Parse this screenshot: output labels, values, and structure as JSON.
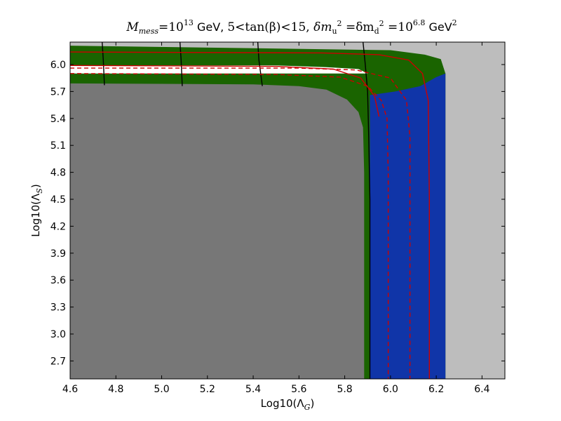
{
  "chart_data": {
    "type": "heatmap",
    "title": "Mmess=10^13 GeV, 5<tan(β)<15, δmu^2=δmd^2=10^6.8 GeV^2",
    "title_parts": {
      "m": "M",
      "m_sub": "mess",
      "eq1": "=10",
      "exp1": "13",
      "gev": " GeV, ",
      "tan": "5<tan(β)<15, ",
      "dmu": "δm",
      "dmu_sub": "u",
      "dmu_sup": "2",
      "eq2": " =δm",
      "dmd_sub": "d",
      "dmd_sup": "2",
      "eq3": " =10",
      "exp2": "6.8",
      "gev2": " GeV",
      "gev2_sup": "2"
    },
    "xlabel": {
      "prefix": "Log10(Λ",
      "sub": "G",
      "suffix": ")"
    },
    "ylabel": {
      "prefix": "Log10(Λ",
      "sub": "S",
      "suffix": ")"
    },
    "xlim": [
      4.6,
      6.5
    ],
    "ylim": [
      2.5,
      6.25
    ],
    "xticks": [
      "4.6",
      "4.8",
      "5.0",
      "5.2",
      "5.4",
      "5.6",
      "5.8",
      "6.0",
      "6.2",
      "6.4"
    ],
    "yticks": [
      "2.7",
      "3.0",
      "3.3",
      "3.6",
      "3.9",
      "4.2",
      "4.5",
      "4.8",
      "5.1",
      "5.4",
      "5.7",
      "6.0"
    ],
    "regions": [
      {
        "kind": "excluded",
        "color": "#bdbdbd",
        "bounds": {
          "x": [
            4.6,
            6.5
          ],
          "y": [
            2.5,
            6.25
          ]
        }
      },
      {
        "kind": "green",
        "color": "#1a6400",
        "boundary": [
          [
            4.6,
            6.21
          ],
          [
            6.0,
            6.16
          ],
          [
            6.15,
            6.11
          ],
          [
            6.22,
            6.06
          ],
          [
            6.24,
            5.9
          ],
          [
            6.24,
            2.5
          ],
          [
            4.6,
            2.5
          ]
        ]
      },
      {
        "kind": "white",
        "color": "#ffffff",
        "boundary": [
          [
            4.6,
            5.99
          ],
          [
            5.5,
            5.99
          ],
          [
            5.72,
            5.97
          ],
          [
            5.86,
            5.95
          ],
          [
            5.9,
            5.9
          ],
          [
            4.6,
            5.9
          ]
        ]
      },
      {
        "kind": "blue",
        "color": "#1035a8",
        "boundary": [
          [
            5.91,
            5.66
          ],
          [
            6.02,
            5.7
          ],
          [
            6.13,
            5.76
          ],
          [
            6.2,
            5.86
          ],
          [
            6.24,
            5.9
          ],
          [
            6.24,
            2.5
          ],
          [
            5.91,
            2.5
          ]
        ]
      },
      {
        "kind": "gray",
        "color": "#777777",
        "boundary": [
          [
            4.6,
            5.79
          ],
          [
            5.4,
            5.78
          ],
          [
            5.6,
            5.76
          ],
          [
            5.72,
            5.72
          ],
          [
            5.81,
            5.61
          ],
          [
            5.86,
            5.47
          ],
          [
            5.88,
            5.3
          ],
          [
            5.885,
            4.8
          ],
          [
            5.885,
            2.5
          ],
          [
            4.6,
            2.5
          ]
        ]
      }
    ],
    "contours": [
      {
        "style": "solid",
        "color": "#000000",
        "points": [
          [
            4.74,
            6.25
          ],
          [
            4.745,
            6.05
          ],
          [
            4.75,
            5.77
          ]
        ]
      },
      {
        "style": "solid",
        "color": "#000000",
        "points": [
          [
            5.08,
            6.25
          ],
          [
            5.085,
            6.05
          ],
          [
            5.09,
            5.76
          ]
        ]
      },
      {
        "style": "solid",
        "color": "#000000",
        "points": [
          [
            5.42,
            6.25
          ],
          [
            5.425,
            6.05
          ],
          [
            5.44,
            5.76
          ]
        ]
      },
      {
        "style": "solid",
        "color": "#000000",
        "points": [
          [
            5.88,
            6.25
          ],
          [
            5.89,
            6.0
          ],
          [
            5.9,
            5.7
          ],
          [
            5.905,
            5.2
          ],
          [
            5.91,
            4.5
          ],
          [
            5.91,
            2.5
          ]
        ]
      },
      {
        "style": "solid",
        "color": "#cc0000",
        "points": [
          [
            4.6,
            6.14
          ],
          [
            5.7,
            6.13
          ],
          [
            5.95,
            6.11
          ],
          [
            6.08,
            6.05
          ],
          [
            6.14,
            5.9
          ],
          [
            6.165,
            5.6
          ],
          [
            6.17,
            4.5
          ],
          [
            6.17,
            2.5
          ]
        ]
      },
      {
        "style": "solid",
        "color": "#cc0000",
        "points": [
          [
            4.6,
            5.99
          ],
          [
            5.5,
            5.98
          ],
          [
            5.75,
            5.95
          ],
          [
            5.87,
            5.85
          ],
          [
            5.93,
            5.65
          ],
          [
            5.95,
            5.42
          ]
        ]
      },
      {
        "style": "dashed",
        "color": "#cc0000",
        "points": [
          [
            4.6,
            5.96
          ],
          [
            5.6,
            5.96
          ],
          [
            5.85,
            5.94
          ],
          [
            6.0,
            5.85
          ],
          [
            6.07,
            5.6
          ],
          [
            6.085,
            5.2
          ],
          [
            6.085,
            2.5
          ]
        ]
      },
      {
        "style": "dashed",
        "color": "#cc0000",
        "points": [
          [
            4.6,
            5.9
          ],
          [
            5.5,
            5.89
          ],
          [
            5.78,
            5.86
          ],
          [
            5.9,
            5.76
          ],
          [
            5.96,
            5.6
          ],
          [
            5.985,
            5.4
          ],
          [
            5.99,
            4.8
          ],
          [
            5.99,
            2.5
          ]
        ]
      }
    ]
  }
}
